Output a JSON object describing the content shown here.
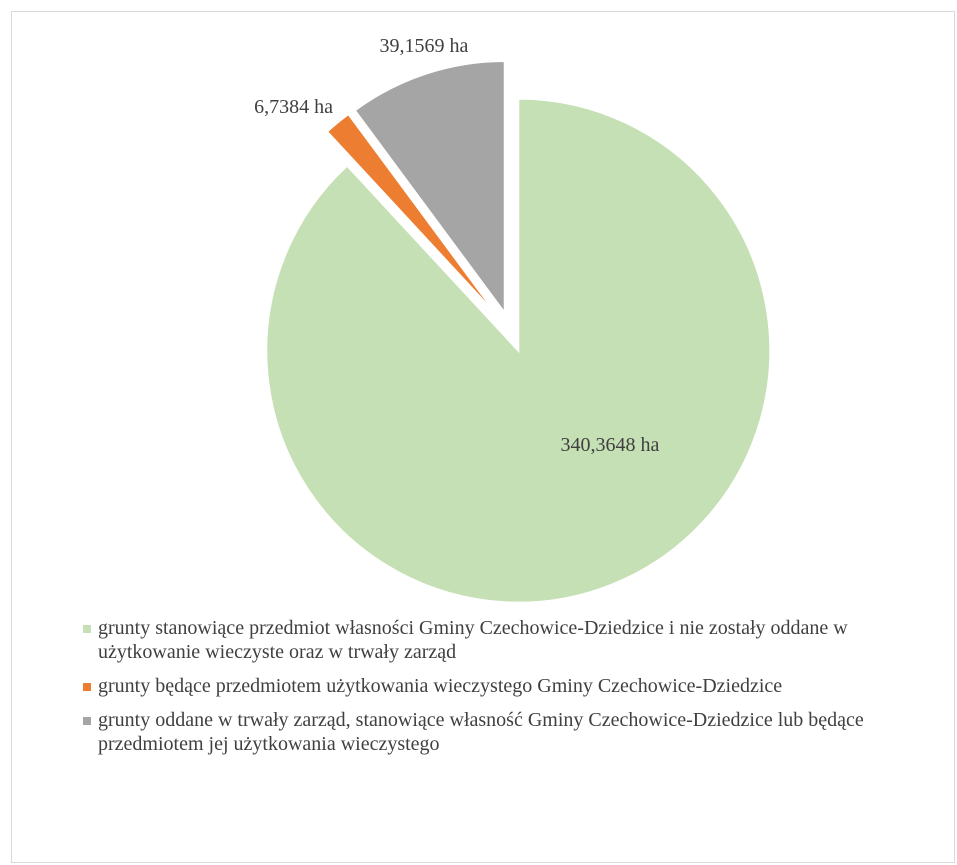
{
  "chart_data": {
    "type": "pie",
    "title": "",
    "exploded": true,
    "slices": [
      {
        "name": "grunty stanowiące przedmiot własności Gminy Czechowice-Dziedzice i nie zostały oddane w użytkowanie wieczyste oraz w trwały zarząd",
        "value": 340.3648,
        "label": "340,3648 ha",
        "color": "#c5e0b4"
      },
      {
        "name": "grunty będące przedmiotem użytkowania wieczystego Gminy Czechowice-Dziedzice",
        "value": 6.7384,
        "label": "6,7384 ha",
        "color": "#ed7d31"
      },
      {
        "name": "grunty oddane w trwały zarząd, stanowiące własność Gminy Czechowice-Dziedzice lub będące przedmiotem jej użytkowania wieczystego",
        "value": 39.1569,
        "label": "39,1569 ha",
        "color": "#a5a5a5"
      }
    ],
    "legend_position": "bottom"
  }
}
